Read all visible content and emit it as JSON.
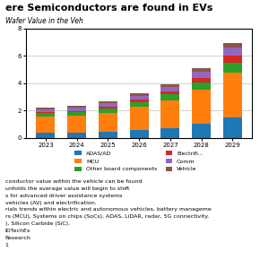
{
  "chart_data": {
    "type": "bar",
    "stacked": true,
    "title": "ere Semiconductors are found in EVs",
    "subtitle": "Wafer Value in the Veh",
    "annotations": [
      "conductor value within the vehicle can be found",
      "unfolds the average value will begin to shift",
      "s for advanced driver assistance systems",
      "vehicles (AV) and electrification.",
      "rials trends within electric and autonomous vehicles, battery manageme",
      "rs (MCU), Systems on chips (SoCs), ADAS, LiDAR, radar, 5G connectivity.",
      "), Silicon Carbide (SiC).",
      "IDTechEx",
      "Research",
      "1"
    ],
    "categories": [
      "2023",
      "2024",
      "2025",
      "2026",
      "2027",
      "2028",
      "2029"
    ],
    "series": [
      {
        "name": "ADAS/AD",
        "values": [
          0.35,
          0.36,
          0.42,
          0.55,
          0.72,
          1.0,
          1.5
        ]
      },
      {
        "name": "MCU",
        "values": [
          1.2,
          1.25,
          1.4,
          1.7,
          2.0,
          2.5,
          3.3
        ]
      },
      {
        "name": "Other board components",
        "values": [
          0.25,
          0.28,
          0.32,
          0.38,
          0.45,
          0.55,
          0.72
        ]
      },
      {
        "name": "Electrifi...",
        "values": [
          0.08,
          0.09,
          0.11,
          0.15,
          0.2,
          0.35,
          0.52
        ]
      },
      {
        "name": "Comm",
        "values": [
          0.2,
          0.22,
          0.26,
          0.3,
          0.35,
          0.42,
          0.55
        ]
      },
      {
        "name": "Vehicle",
        "values": [
          0.12,
          0.13,
          0.15,
          0.18,
          0.22,
          0.28,
          0.38
        ]
      }
    ],
    "ylim": [
      0,
      8
    ],
    "yticks": [
      0,
      2,
      4,
      6,
      8
    ],
    "grid": true,
    "legend": "upper center"
  }
}
